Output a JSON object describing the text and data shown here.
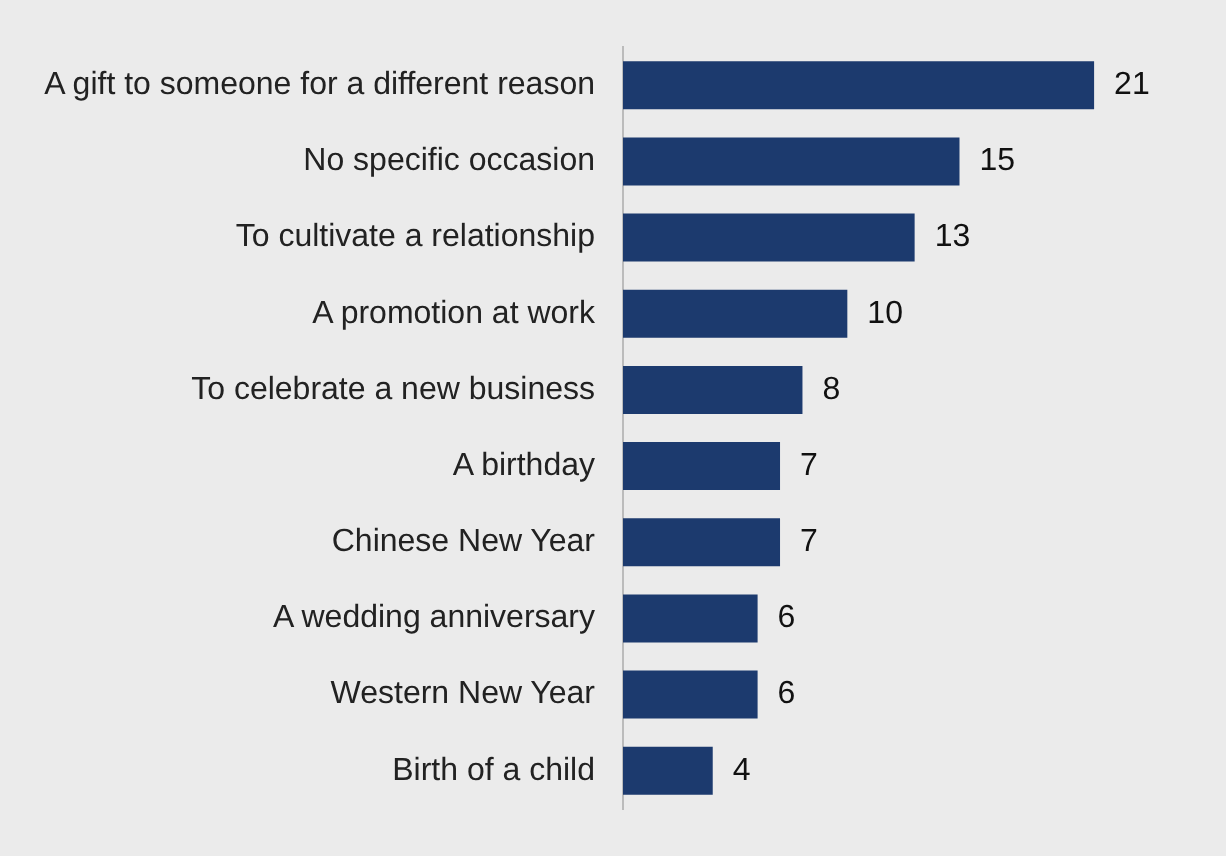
{
  "chart_data": {
    "type": "bar",
    "orientation": "horizontal",
    "categories": [
      "A gift to someone for a different reason",
      "No specific occasion",
      "To cultivate a relationship",
      "A promotion at work",
      "To celebrate a new business",
      "A birthday",
      "Chinese New Year",
      "A wedding anniversary",
      "Western New Year",
      "Birth of a child"
    ],
    "values": [
      21,
      15,
      13,
      10,
      8,
      7,
      7,
      6,
      6,
      4
    ],
    "color": "#1c3a6e",
    "data_labels": true,
    "grid": false,
    "legend": false,
    "tick_labels": "y"
  }
}
